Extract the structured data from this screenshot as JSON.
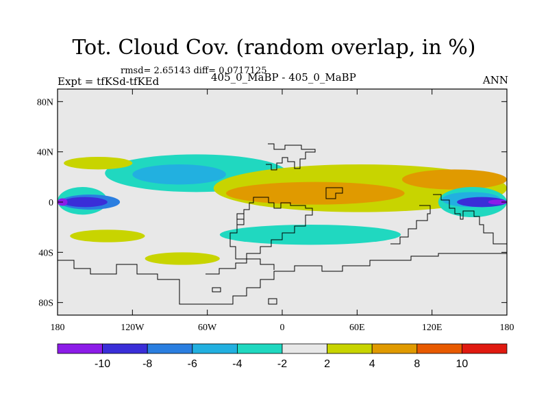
{
  "chart_data": {
    "type": "heatmap",
    "title": "Tot. Cloud Cov. (random overlap, in %)",
    "stats_line": "rmsd= 2.65143 diff= 0.0717125",
    "experiment_line": "Expt = tfKSd-tfKEd",
    "runs_line": "405_0_MaBP - 405_0_MaBP",
    "season": "ANN",
    "x_range": [
      -180,
      180
    ],
    "y_range": [
      -90,
      90
    ],
    "x_ticks": [
      {
        "value": -180,
        "label": "180"
      },
      {
        "value": -120,
        "label": "120W"
      },
      {
        "value": -60,
        "label": "60W"
      },
      {
        "value": 0,
        "label": "0"
      },
      {
        "value": 60,
        "label": "60E"
      },
      {
        "value": 120,
        "label": "120E"
      },
      {
        "value": 180,
        "label": "180"
      }
    ],
    "y_ticks": [
      {
        "value": 80,
        "label": "80N"
      },
      {
        "value": 40,
        "label": "40N"
      },
      {
        "value": 0,
        "label": "0"
      },
      {
        "value": -40,
        "label": "40S"
      },
      {
        "value": -80,
        "label": "80S"
      }
    ],
    "colorbar": {
      "levels": [
        "-10",
        "-8",
        "-6",
        "-4",
        "-2",
        "2",
        "4",
        "8",
        "10"
      ],
      "colors": [
        "#8c1ce8",
        "#3a2ed8",
        "#2a7ee0",
        "#22b0e0",
        "#20d8c0",
        "#e8e8e8",
        "#c8d400",
        "#e09a00",
        "#e85a00",
        "#e01a10"
      ]
    },
    "background_color": "#e8e8e8",
    "regions": [
      {
        "category": "-4 to -2",
        "color": "#20d8c0",
        "lon": [
          -142,
          4
        ],
        "lat": [
          8,
          38
        ],
        "description": "tropical north Pacific band"
      },
      {
        "category": "-6 to -4",
        "color": "#22b0e0",
        "lon": [
          -120,
          -45
        ],
        "lat": [
          14,
          30
        ]
      },
      {
        "category": "2 to 4",
        "color": "#c8d400",
        "lon": [
          -175,
          -120
        ],
        "lat": [
          26,
          36
        ]
      },
      {
        "category": "-4 to -2",
        "color": "#20d8c0",
        "lon": [
          -180,
          -140
        ],
        "lat": [
          -10,
          12
        ],
        "description": "west Pacific edge"
      },
      {
        "category": "-8 to -6",
        "color": "#2a7ee0",
        "lon": [
          -178,
          -130
        ],
        "lat": [
          -6,
          6
        ]
      },
      {
        "category": "-10 to -8",
        "color": "#3a2ed8",
        "lon": [
          -176,
          -140
        ],
        "lat": [
          -4,
          4
        ]
      },
      {
        "category": "< -10",
        "color": "#8c1ce8",
        "lon": [
          -180,
          -172
        ],
        "lat": [
          -3,
          3
        ]
      },
      {
        "category": "2 to 4",
        "color": "#c8d400",
        "lon": [
          -55,
          180
        ],
        "lat": [
          -8,
          30
        ],
        "description": "central band"
      },
      {
        "category": "4 to 8",
        "color": "#e09a00",
        "lon": [
          -45,
          98
        ],
        "lat": [
          -2,
          16
        ]
      },
      {
        "category": "4 to 8",
        "color": "#e09a00",
        "lon": [
          96,
          180
        ],
        "lat": [
          10,
          26
        ]
      },
      {
        "category": "-4 to -2",
        "color": "#20d8c0",
        "lon": [
          125,
          180
        ],
        "lat": [
          -12,
          12
        ]
      },
      {
        "category": "-6 to -4",
        "color": "#22b0e0",
        "lon": [
          128,
          175
        ],
        "lat": [
          -4,
          8
        ]
      },
      {
        "category": "-10 to -8",
        "color": "#3a2ed8",
        "lon": [
          140,
          180
        ],
        "lat": [
          -4,
          4
        ]
      },
      {
        "category": "< -10",
        "color": "#8c1ce8",
        "lon": [
          165,
          180
        ],
        "lat": [
          -2,
          2
        ]
      },
      {
        "category": "-4 to -2",
        "color": "#20d8c0",
        "lon": [
          -50,
          95
        ],
        "lat": [
          -34,
          -18
        ]
      },
      {
        "category": "2 to 4",
        "color": "#c8d400",
        "lon": [
          -170,
          -110
        ],
        "lat": [
          -32,
          -22
        ]
      },
      {
        "category": "2 to 4",
        "color": "#c8d400",
        "lon": [
          -110,
          -50
        ],
        "lat": [
          -50,
          -40
        ]
      }
    ],
    "contour_lines": "continent outlines (black)"
  }
}
